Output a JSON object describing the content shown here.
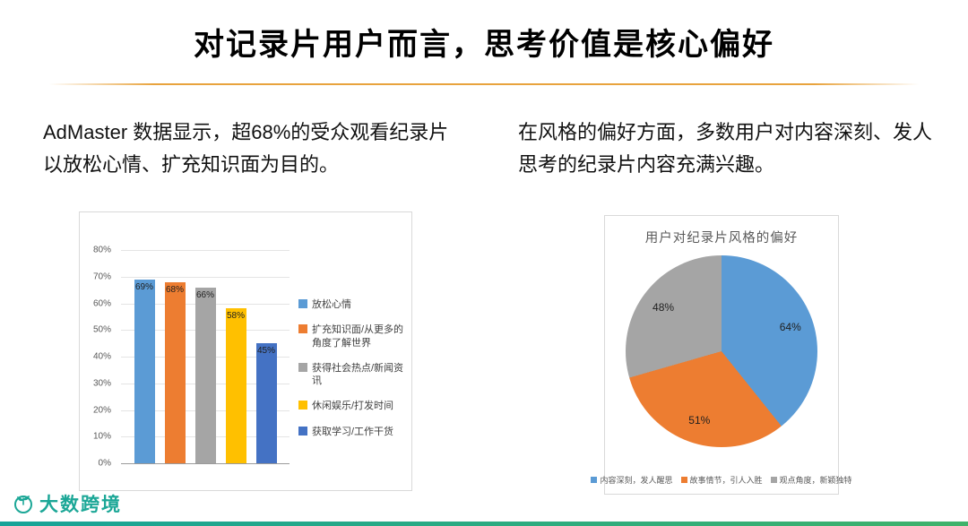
{
  "title": "对记录片用户而言，思考价值是核心偏好",
  "left_text": "AdMaster 数据显示，超68%的受众观看纪录片以放松心情、扩充知识面为目的。",
  "right_text": "在风格的偏好方面，多数用户对内容深刻、发人思考的纪录片内容充满兴趣。",
  "footer": {
    "logo_text": "大数跨境"
  },
  "colors": {
    "accent": "#E8A33D",
    "teal": "#1CA797"
  },
  "chart_data": [
    {
      "type": "bar",
      "categories": [
        "放松心情",
        "扩充知识面/从更多的角度了解世界",
        "获得社会热点/新闻资讯",
        "休闲娱乐/打发时间",
        "获取学习/工作干货"
      ],
      "values": [
        69,
        68,
        66,
        58,
        45
      ],
      "labels": [
        "69%",
        "68%",
        "66%",
        "58%",
        "45%"
      ],
      "colors": [
        "#5B9BD5",
        "#ED7D31",
        "#A5A5A5",
        "#FFC000",
        "#4472C4"
      ],
      "title": "",
      "xlabel": "",
      "ylabel": "",
      "ylim": [
        0,
        80
      ],
      "yticks": [
        "80%",
        "70%",
        "60%",
        "50%",
        "40%",
        "30%",
        "20%",
        "10%",
        "0%"
      ],
      "grid": true,
      "legend_position": "right"
    },
    {
      "type": "pie",
      "title": "用户对纪录片风格的偏好",
      "categories": [
        "内容深刻，发人醒思",
        "故事情节，引人入胜",
        "观点角度，新颖独特"
      ],
      "values": [
        64,
        51,
        48
      ],
      "labels": [
        "64%",
        "51%",
        "48%"
      ],
      "colors": [
        "#5B9BD5",
        "#ED7D31",
        "#A5A5A5"
      ],
      "legend_position": "bottom",
      "start_angle_deg": 0
    }
  ]
}
